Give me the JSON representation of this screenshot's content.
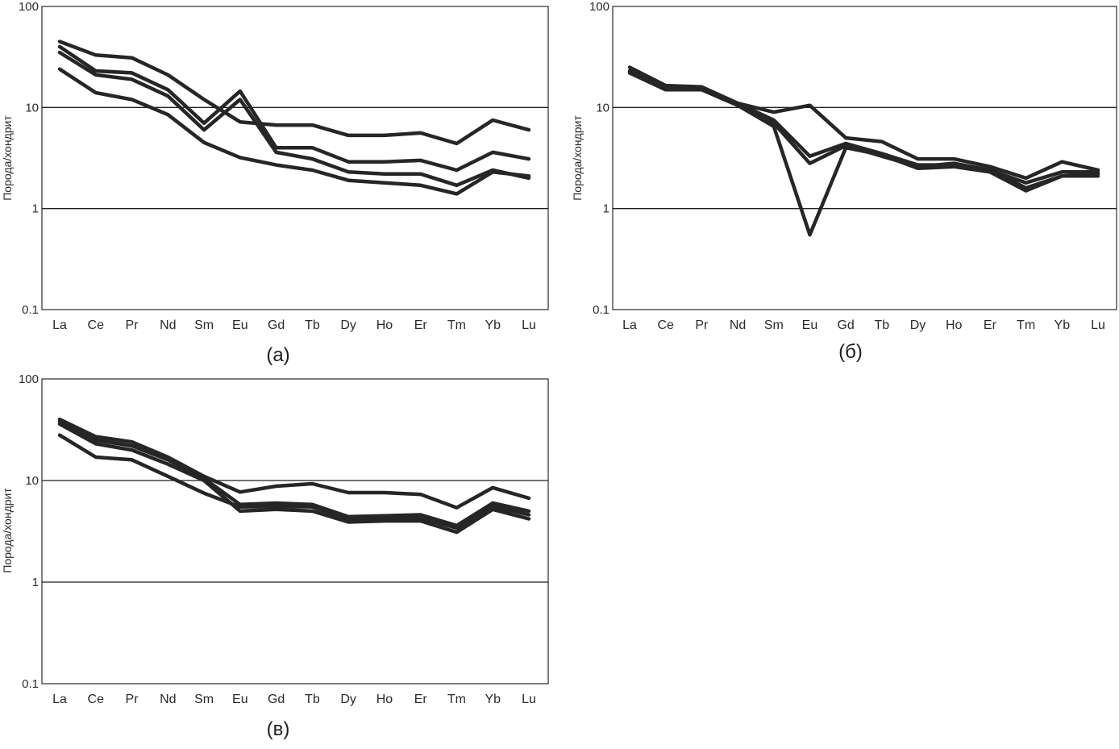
{
  "chart_data": [
    {
      "type": "line",
      "panel_label": "(а)",
      "ylabel": "Порода/хондрит",
      "yscale": "log",
      "ylim": [
        0.1,
        100
      ],
      "yticks": [
        "0.1",
        "1",
        "10",
        "100"
      ],
      "grid": "horizontal at 1, 10",
      "categories": [
        "La",
        "Ce",
        "Pr",
        "Nd",
        "Sm",
        "Eu",
        "Gd",
        "Tb",
        "Dy",
        "Ho",
        "Er",
        "Tm",
        "Yb",
        "Lu"
      ],
      "series": [
        {
          "values": [
            45,
            33,
            31,
            21,
            12,
            7.2,
            6.7,
            6.7,
            5.3,
            5.3,
            5.6,
            4.4,
            7.5,
            6.0
          ]
        },
        {
          "values": [
            40,
            23,
            22,
            15,
            7.0,
            14.5,
            4.0,
            4.0,
            2.9,
            2.9,
            3.0,
            2.4,
            3.6,
            3.1
          ]
        },
        {
          "values": [
            35,
            21,
            19,
            13,
            6.0,
            12.0,
            3.6,
            3.1,
            2.3,
            2.2,
            2.2,
            1.7,
            2.4,
            2.0
          ]
        },
        {
          "values": [
            24,
            14,
            12,
            8.5,
            4.5,
            3.2,
            2.7,
            2.4,
            1.9,
            1.8,
            1.7,
            1.4,
            2.3,
            2.1
          ]
        }
      ]
    },
    {
      "type": "line",
      "panel_label": "(б)",
      "ylabel": "Порода/хондрит",
      "yscale": "log",
      "ylim": [
        0.1,
        100
      ],
      "yticks": [
        "0.1",
        "1",
        "10",
        "100"
      ],
      "grid": "horizontal at 1, 10",
      "categories": [
        "La",
        "Ce",
        "Pr",
        "Nd",
        "Sm",
        "Eu",
        "Gd",
        "Tb",
        "Dy",
        "Ho",
        "Er",
        "Tm",
        "Yb",
        "Lu"
      ],
      "series": [
        {
          "values": [
            25,
            16.5,
            16,
            11,
            9.0,
            10.5,
            5.0,
            4.6,
            3.1,
            3.1,
            2.6,
            2.0,
            2.9,
            2.4
          ]
        },
        {
          "values": [
            23,
            16,
            15,
            11,
            7.5,
            3.3,
            4.4,
            3.5,
            2.7,
            2.7,
            2.4,
            1.6,
            2.1,
            2.1
          ]
        },
        {
          "values": [
            22,
            15,
            15,
            10.5,
            6.5,
            0.55,
            4.0,
            3.4,
            2.5,
            2.6,
            2.3,
            1.5,
            2.1,
            2.2
          ]
        },
        {
          "values": [
            22.5,
            15.5,
            15.5,
            10.8,
            7.0,
            2.8,
            4.2,
            3.3,
            2.6,
            2.8,
            2.4,
            1.8,
            2.3,
            2.3
          ]
        }
      ]
    },
    {
      "type": "line",
      "panel_label": "(в)",
      "ylabel": "Порода/хондрит",
      "yscale": "log",
      "ylim": [
        0.1,
        100
      ],
      "yticks": [
        "0.1",
        "1",
        "10",
        "100"
      ],
      "grid": "horizontal at 1, 10",
      "categories": [
        "La",
        "Ce",
        "Pr",
        "Nd",
        "Sm",
        "Eu",
        "Gd",
        "Tb",
        "Dy",
        "Ho",
        "Er",
        "Tm",
        "Yb",
        "Lu"
      ],
      "series": [
        {
          "values": [
            40,
            27,
            24,
            17,
            11,
            7.7,
            8.8,
            9.3,
            7.6,
            7.6,
            7.3,
            5.4,
            8.5,
            6.7
          ]
        },
        {
          "values": [
            38,
            25,
            22,
            16,
            10.5,
            5.8,
            6.0,
            5.8,
            4.4,
            4.5,
            4.6,
            3.6,
            6.0,
            5.0
          ]
        },
        {
          "values": [
            36,
            23,
            20,
            14.5,
            10,
            5.0,
            5.2,
            5.0,
            3.9,
            4.0,
            4.0,
            3.1,
            5.2,
            4.2
          ]
        },
        {
          "values": [
            28,
            17,
            16,
            11,
            7.5,
            5.5,
            5.6,
            5.5,
            4.1,
            4.2,
            4.3,
            3.4,
            5.6,
            4.6
          ]
        }
      ]
    }
  ]
}
